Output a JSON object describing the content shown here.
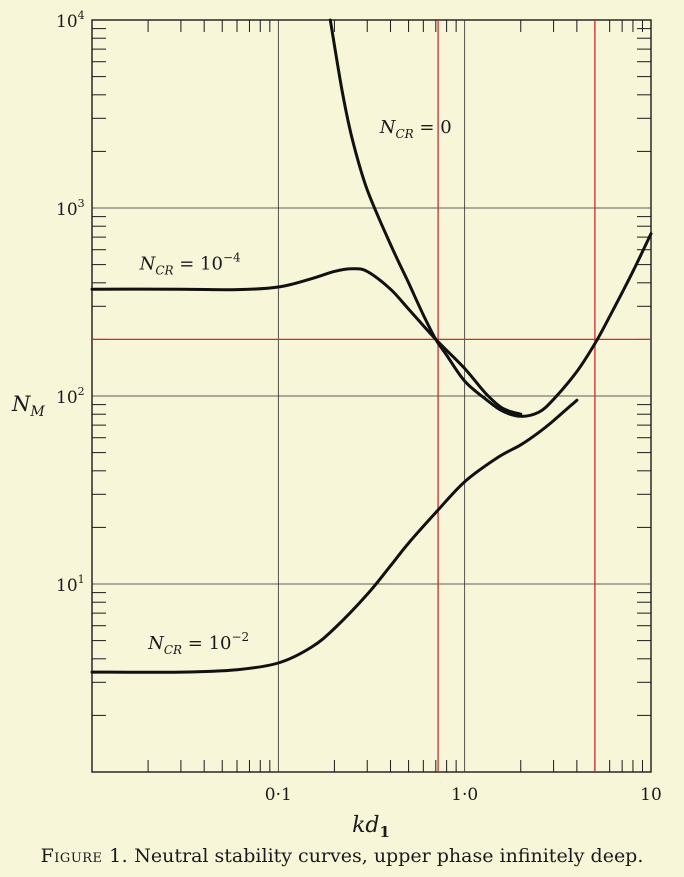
{
  "chart_data": {
    "type": "line",
    "x_scale": "log",
    "y_scale": "log",
    "xlim": [
      0.01,
      10
    ],
    "ylim": [
      1,
      10000
    ],
    "xlabel": "kd₁",
    "ylabel": "N_M",
    "x_ticks": [
      {
        "value": 0.1,
        "label": "0·1"
      },
      {
        "value": 1,
        "label": "1·0"
      },
      {
        "value": 10,
        "label": "10"
      }
    ],
    "y_ticks": [
      {
        "value": 10000,
        "base": "10",
        "exp": "4"
      },
      {
        "value": 1000,
        "base": "10",
        "exp": "3"
      },
      {
        "value": 100,
        "base": "10",
        "exp": "2"
      },
      {
        "value": 10,
        "base": "10",
        "exp": "1"
      }
    ],
    "grid": true,
    "series": [
      {
        "name": "N_CR = 0",
        "label": {
          "var": "N",
          "sub": "CR",
          "rhs": "= 0"
        },
        "points": [
          [
            0.19,
            10000
          ],
          [
            0.22,
            4200
          ],
          [
            0.25,
            2300
          ],
          [
            0.3,
            1250
          ],
          [
            0.4,
            640
          ],
          [
            0.5,
            400
          ],
          [
            0.6,
            270
          ],
          [
            0.7,
            200
          ],
          [
            0.8,
            165
          ],
          [
            1.0,
            120
          ],
          [
            1.3,
            96
          ],
          [
            1.6,
            83
          ],
          [
            2.0,
            78
          ],
          [
            2.5,
            82
          ],
          [
            3.0,
            96
          ],
          [
            4.0,
            135
          ],
          [
            5.0,
            190
          ],
          [
            6.0,
            265
          ],
          [
            8.0,
            460
          ],
          [
            10.0,
            730
          ]
        ]
      },
      {
        "name": "N_CR = 10^-4",
        "label": {
          "var": "N",
          "sub": "CR",
          "rhs": "= 10",
          "exp": "−4"
        },
        "points": [
          [
            0.01,
            370
          ],
          [
            0.03,
            370
          ],
          [
            0.06,
            368
          ],
          [
            0.1,
            380
          ],
          [
            0.15,
            420
          ],
          [
            0.2,
            460
          ],
          [
            0.25,
            475
          ],
          [
            0.3,
            460
          ],
          [
            0.4,
            370
          ],
          [
            0.5,
            290
          ],
          [
            0.7,
            200
          ],
          [
            1.0,
            140
          ],
          [
            1.3,
            103
          ],
          [
            1.6,
            86
          ],
          [
            2.0,
            80
          ]
        ]
      },
      {
        "name": "N_CR = 10^-2",
        "label": {
          "var": "N",
          "sub": "CR",
          "rhs": "= 10",
          "exp": "−2"
        },
        "points": [
          [
            0.01,
            3.4
          ],
          [
            0.03,
            3.4
          ],
          [
            0.06,
            3.5
          ],
          [
            0.1,
            3.8
          ],
          [
            0.15,
            4.6
          ],
          [
            0.2,
            5.8
          ],
          [
            0.3,
            8.8
          ],
          [
            0.4,
            12.5
          ],
          [
            0.5,
            16.5
          ],
          [
            0.7,
            24
          ],
          [
            1.0,
            35
          ],
          [
            1.5,
            47
          ],
          [
            2.0,
            55
          ],
          [
            2.5,
            64
          ],
          [
            3.0,
            74
          ],
          [
            4.0,
            95
          ]
        ]
      }
    ],
    "reference_lines": {
      "color": "#d42a2a",
      "horizontal": [
        200
      ],
      "vertical": [
        0.72,
        5.0
      ]
    },
    "caption": {
      "figure": "Figure 1.",
      "text": "Neutral stability curves, upper phase infinitely deep."
    }
  }
}
